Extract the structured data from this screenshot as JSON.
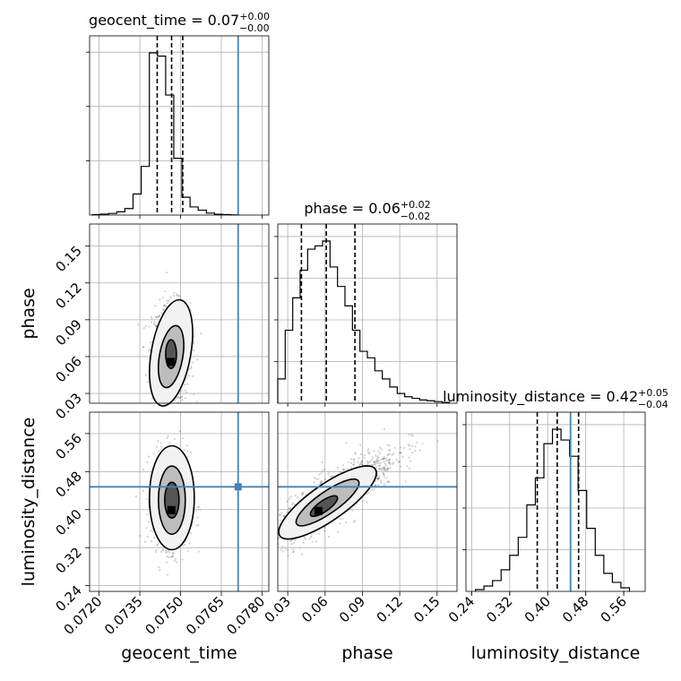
{
  "chart_data": {
    "type": "corner",
    "parameters": [
      "geocent_time",
      "phase",
      "luminosity_distance"
    ],
    "truths": {
      "geocent_time": 0.07712,
      "phase": null,
      "luminosity_distance": 0.448
    },
    "truth_color": "#4682b4",
    "grid": true,
    "diagonal": [
      {
        "param": "geocent_time",
        "title_main": "geocent_time = 0.07",
        "title_sup": "+0.00",
        "title_sub": "−0.00",
        "quantiles": [
          0.07414,
          0.07467,
          0.07508
        ],
        "xlim": [
          0.07165,
          0.07825
        ],
        "bin_edges": [
          0.07175,
          0.07205,
          0.07235,
          0.07265,
          0.07295,
          0.07325,
          0.07355,
          0.07385,
          0.07415,
          0.07445,
          0.07475,
          0.07505,
          0.07535,
          0.07565,
          0.07595,
          0.07625,
          0.07655,
          0.07685,
          0.07715
        ],
        "counts": [
          0.3,
          0.6,
          1,
          2,
          4,
          13,
          30,
          100,
          98,
          74,
          35,
          11,
          5,
          3,
          1.2,
          0.5,
          0.3,
          0.1
        ],
        "ytick_count": 3
      },
      {
        "param": "phase",
        "title_main": "phase = 0.06",
        "title_sup": "+0.02",
        "title_sub": "−0.02",
        "quantiles": [
          0.041,
          0.061,
          0.084
        ],
        "xlim": [
          0.022,
          0.166
        ],
        "bin_edges": [
          0.022,
          0.028,
          0.034,
          0.04,
          0.046,
          0.052,
          0.058,
          0.064,
          0.07,
          0.076,
          0.082,
          0.088,
          0.094,
          0.1,
          0.106,
          0.112,
          0.118,
          0.124,
          0.13,
          0.136,
          0.142,
          0.148,
          0.154,
          0.16
        ],
        "counts": [
          15,
          45,
          65,
          82,
          95,
          97,
          100,
          84,
          72,
          60,
          45,
          32,
          28,
          20,
          15,
          10,
          6,
          4,
          3,
          2,
          1.5,
          1,
          0.5
        ],
        "ytick_count": 4
      },
      {
        "param": "luminosity_distance",
        "title_main": "luminosity_distance = 0.42",
        "title_sup": "+0.05",
        "title_sub": "−0.04",
        "quantiles": [
          0.378,
          0.42,
          0.465
        ],
        "xlim": [
          0.228,
          0.605
        ],
        "bin_edges": [
          0.248,
          0.266,
          0.284,
          0.302,
          0.32,
          0.338,
          0.356,
          0.374,
          0.392,
          0.41,
          0.428,
          0.446,
          0.464,
          0.482,
          0.5,
          0.518,
          0.536,
          0.554,
          0.572
        ],
        "counts": [
          1,
          3,
          6,
          12,
          20,
          30,
          48,
          63,
          82,
          90,
          84,
          75,
          56,
          35,
          20,
          10,
          5,
          2
        ],
        "ytick_count": 4
      }
    ],
    "axes": {
      "geocent_time": {
        "label": "geocent_time",
        "ticks": [
          "0.0720",
          "0.0735",
          "0.0750",
          "0.0765",
          "0.0780"
        ],
        "tick_values": [
          0.072,
          0.0735,
          0.075,
          0.0765,
          0.078
        ],
        "lim": [
          0.07165,
          0.07825
        ]
      },
      "phase": {
        "label": "phase",
        "ticks": [
          "0.03",
          "0.06",
          "0.09",
          "0.12",
          "0.15"
        ],
        "tick_values": [
          0.03,
          0.06,
          0.09,
          0.12,
          0.15
        ],
        "lim": [
          0.022,
          0.166
        ]
      },
      "luminosity_distance": {
        "label": "luminosity_distance",
        "ticks": [
          "0.24",
          "0.32",
          "0.40",
          "0.48",
          "0.56"
        ],
        "tick_values": [
          0.24,
          0.32,
          0.4,
          0.48,
          0.56
        ],
        "lim": [
          0.228,
          0.605
        ]
      }
    },
    "phase_y_lim": [
      0.022,
      0.168
    ],
    "lumi_y_lim": [
      0.228,
      0.605
    ],
    "scatter": {
      "phase_vs_time": {
        "center": [
          0.07465,
          0.063
        ],
        "sd": [
          0.00035,
          0.02
        ],
        "count": 900
      },
      "lumi_vs_time": {
        "center": [
          0.07468,
          0.42
        ],
        "sd": [
          0.00035,
          0.05
        ],
        "count": 900
      },
      "lumi_vs_phase": {
        "center": [
          0.068,
          0.43
        ],
        "sd": [
          0.025,
          0.05
        ],
        "corr": 0.85,
        "count": 1100
      }
    }
  }
}
